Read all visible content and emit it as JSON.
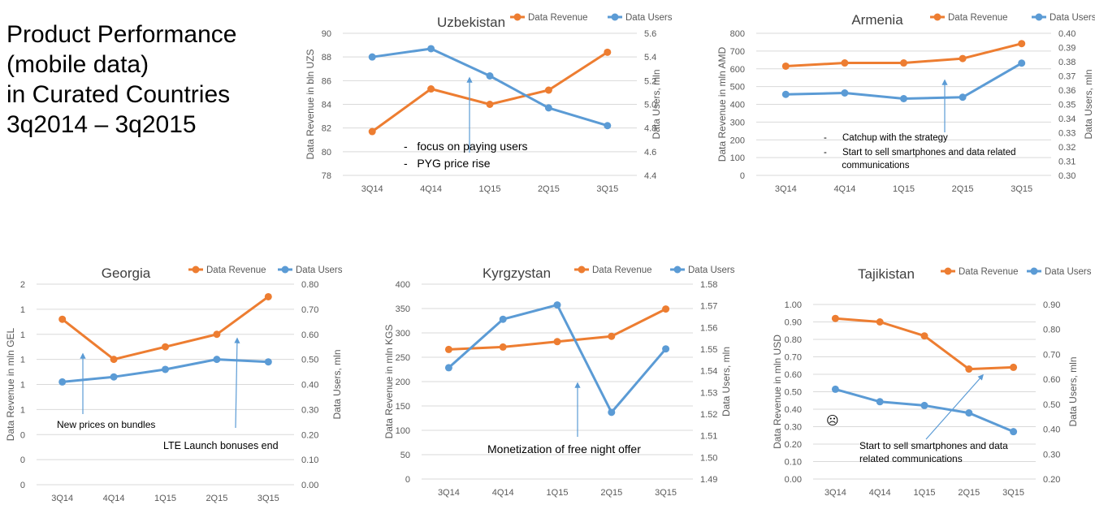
{
  "page": {
    "title_lines": [
      "Product Performance",
      "(mobile data)",
      "in Curated Countries",
      "3q2014 – 3q2015"
    ]
  },
  "colors": {
    "revenue": "#ED7D31",
    "users": "#5B9BD5",
    "grid": "#d9d9d9",
    "text": "#595959",
    "title": "#404040"
  },
  "chart_data": [
    {
      "type": "line",
      "title": "Uzbekistan",
      "categories": [
        "3Q14",
        "4Q14",
        "1Q15",
        "2Q15",
        "3Q15"
      ],
      "ylabel": "Data Revenue in bln UZS",
      "y2label": "Data Users, mln",
      "ylim": [
        78,
        90
      ],
      "yticks": [
        "78",
        "80",
        "82",
        "84",
        "86",
        "88",
        "90"
      ],
      "y2lim": [
        4.4,
        5.6
      ],
      "y2ticks": [
        "4.4",
        "4.6",
        "4.8",
        "5.0",
        "5.2",
        "5.4",
        "5.6"
      ],
      "legend_position": "top-right",
      "series": [
        {
          "name": "Data Revenue",
          "axis": "left",
          "values": [
            81.7,
            85.3,
            84.0,
            85.2,
            88.4
          ]
        },
        {
          "name": "Data Users",
          "axis": "right",
          "values": [
            5.4,
            5.47,
            5.24,
            4.97,
            4.82
          ]
        }
      ],
      "annotations": [
        "-   focus on paying users",
        "-   PYG price rise"
      ],
      "smiley": ""
    },
    {
      "type": "line",
      "title": "Armenia",
      "categories": [
        "3Q14",
        "4Q14",
        "1Q15",
        "2Q15",
        "3Q15"
      ],
      "ylabel": "Data Revenue in mln AMD",
      "y2label": "Data Users, mln",
      "ylim": [
        0,
        800
      ],
      "yticks": [
        "0",
        "100",
        "200",
        "300",
        "400",
        "500",
        "600",
        "700",
        "800"
      ],
      "y2lim": [
        0.3,
        0.4
      ],
      "y2ticks": [
        "0.30",
        "0.31",
        "0.32",
        "0.33",
        "0.34",
        "0.35",
        "0.36",
        "0.37",
        "0.38",
        "0.39",
        "0.40"
      ],
      "legend_position": "top-right",
      "series": [
        {
          "name": "Data Revenue",
          "axis": "left",
          "values": [
            615,
            633,
            633,
            658,
            742
          ]
        },
        {
          "name": "Data Users",
          "axis": "right",
          "values": [
            0.357,
            0.358,
            0.354,
            0.355,
            0.379
          ]
        }
      ],
      "annotations": [
        "-      Catchup with the strategy",
        "-      Start to sell smartphones and data related",
        "       communications"
      ],
      "smiley": ""
    },
    {
      "type": "line",
      "title": "Georgia",
      "categories": [
        "3Q14",
        "4Q14",
        "1Q15",
        "2Q15",
        "3Q15"
      ],
      "ylabel": "Data Revenue in mln GEL",
      "y2label": "Data Users, mln",
      "ylim": [
        0,
        8
      ],
      "yticks": [
        "0",
        "0",
        "0",
        "1",
        "1",
        "1",
        "1",
        "1",
        "2"
      ],
      "y2lim": [
        0,
        0.8
      ],
      "y2ticks": [
        "0.00",
        "0.10",
        "0.20",
        "0.30",
        "0.40",
        "0.50",
        "0.60",
        "0.70",
        "0.80"
      ],
      "legend_position": "top-right",
      "series": [
        {
          "name": "Data Revenue",
          "axis": "left",
          "values": [
            6.6,
            5.0,
            5.5,
            6.0,
            7.5
          ]
        },
        {
          "name": "Data Users",
          "axis": "right",
          "values": [
            0.41,
            0.43,
            0.46,
            0.5,
            0.49
          ]
        }
      ],
      "annotations": [
        "New prices on bundles",
        "LTE Launch bonuses end"
      ],
      "smiley": ""
    },
    {
      "type": "line",
      "title": "Kyrgzystan",
      "categories": [
        "3Q14",
        "4Q14",
        "1Q15",
        "2Q15",
        "3Q15"
      ],
      "ylabel": "Data Revenue in mln KGS",
      "y2label": "Data Users, mln",
      "ylim": [
        0,
        400
      ],
      "yticks": [
        "0",
        "50",
        "100",
        "150",
        "200",
        "250",
        "300",
        "350",
        "400"
      ],
      "y2lim": [
        1.49,
        1.58
      ],
      "y2ticks": [
        "1.49",
        "1.50",
        "1.51",
        "1.52",
        "1.53",
        "1.54",
        "1.55",
        "1.56",
        "1.57",
        "1.58"
      ],
      "legend_position": "top-right",
      "series": [
        {
          "name": "Data Revenue",
          "axis": "left",
          "values": [
            266,
            271,
            282,
            293,
            349
          ]
        },
        {
          "name": "Data Users",
          "axis": "right",
          "values": [
            1.5414,
            1.5638,
            1.5704,
            1.5208,
            1.5501
          ]
        }
      ],
      "annotations": [
        "Monetization of free night offer"
      ],
      "smiley": ""
    },
    {
      "type": "line",
      "title": "Tajikistan",
      "categories": [
        "3Q14",
        "4Q14",
        "1Q15",
        "2Q15",
        "3Q15"
      ],
      "ylabel": "Data Revenue in mln USD",
      "y2label": "Data Users, mln",
      "ylim": [
        0,
        1.0
      ],
      "yticks": [
        "0.00",
        "0.10",
        "0.20",
        "0.30",
        "0.40",
        "0.50",
        "0.60",
        "0.70",
        "0.80",
        "0.90",
        "1.00"
      ],
      "y2lim": [
        0.2,
        0.9
      ],
      "y2ticks": [
        "0.20",
        "0.30",
        "0.40",
        "0.50",
        "0.60",
        "0.70",
        "0.80",
        "0.90"
      ],
      "legend_position": "top-right",
      "series": [
        {
          "name": "Data Revenue",
          "axis": "left",
          "values": [
            0.92,
            0.9,
            0.82,
            0.63,
            0.64
          ]
        },
        {
          "name": "Data Users",
          "axis": "right",
          "values": [
            0.56,
            0.51,
            0.495,
            0.465,
            0.39
          ]
        }
      ],
      "annotations": [
        "Start to sell smartphones and data",
        "related communications"
      ],
      "smiley": "☹"
    }
  ]
}
